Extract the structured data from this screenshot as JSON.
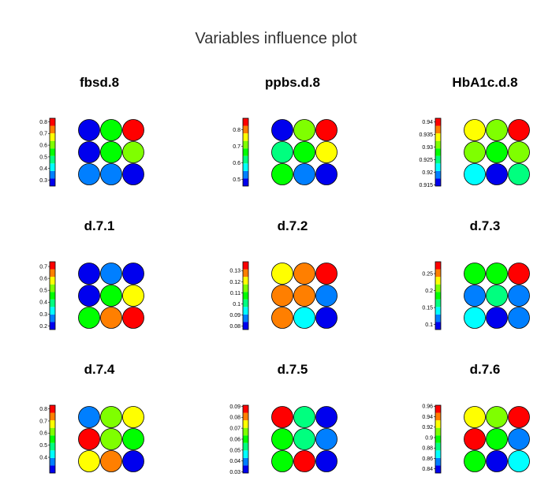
{
  "title": "Variables influence plot",
  "colors": {
    "palette": [
      "#0000ee",
      "#007fff",
      "#00ffff",
      "#00ff7f",
      "#00ff00",
      "#7fff00",
      "#ffff00",
      "#ff7f00",
      "#ff0000"
    ],
    "border": "#000000"
  },
  "chart_data": [
    {
      "type": "heatmap",
      "title": "fbsd.8",
      "scale": {
        "min": 0.25,
        "max": 0.83,
        "ticks": [
          "0.8",
          "0.7",
          "0.6",
          "0.5",
          "0.4",
          "0.3"
        ],
        "tick_values": [
          0.8,
          0.7,
          0.6,
          0.5,
          0.4,
          0.3
        ]
      },
      "values": [
        [
          0.26,
          0.52,
          0.82
        ],
        [
          0.26,
          0.52,
          0.62
        ],
        [
          0.34,
          0.34,
          0.26
        ]
      ]
    },
    {
      "type": "heatmap",
      "title": "ppbs.d.8",
      "scale": {
        "min": 0.46,
        "max": 0.87,
        "ticks": [
          "0.8",
          "0.7",
          "0.6",
          "0.5"
        ],
        "tick_values": [
          0.8,
          0.7,
          0.6,
          0.5
        ]
      },
      "values": [
        [
          0.47,
          0.7,
          0.86
        ],
        [
          0.6,
          0.65,
          0.74
        ],
        [
          0.65,
          0.53,
          0.47
        ]
      ]
    },
    {
      "type": "heatmap",
      "title": "HbA1c.d.8",
      "scale": {
        "min": 0.9145,
        "max": 0.9415,
        "ticks": [
          "0.94",
          "0.935",
          "0.93",
          "0.925",
          "0.92",
          "0.915"
        ],
        "tick_values": [
          0.94,
          0.935,
          0.93,
          0.925,
          0.92,
          0.915
        ]
      },
      "values": [
        [
          0.933,
          0.931,
          0.941
        ],
        [
          0.931,
          0.929,
          0.931
        ],
        [
          0.923,
          0.915,
          0.926
        ]
      ]
    },
    {
      "type": "heatmap",
      "title": "d.7.1",
      "scale": {
        "min": 0.17,
        "max": 0.74,
        "ticks": [
          "0.7",
          "0.6",
          "0.5",
          "0.4",
          "0.3",
          "0.2"
        ],
        "tick_values": [
          0.7,
          0.6,
          0.5,
          0.4,
          0.3,
          0.2
        ]
      },
      "values": [
        [
          0.18,
          0.25,
          0.18
        ],
        [
          0.18,
          0.43,
          0.6
        ],
        [
          0.43,
          0.67,
          0.73
        ]
      ]
    },
    {
      "type": "heatmap",
      "title": "d.7.2",
      "scale": {
        "min": 0.077,
        "max": 0.138,
        "ticks": [
          "0.13",
          "0.12",
          "0.11",
          "0.1",
          "0.09",
          "0.08"
        ],
        "tick_values": [
          0.13,
          0.12,
          0.11,
          0.1,
          0.09,
          0.08
        ]
      },
      "values": [
        [
          0.118,
          0.125,
          0.137
        ],
        [
          0.13,
          0.125,
          0.09
        ],
        [
          0.125,
          0.097,
          0.078
        ]
      ]
    },
    {
      "type": "heatmap",
      "title": "d.7.3",
      "scale": {
        "min": 0.085,
        "max": 0.285,
        "ticks": [
          "0.25",
          "0.2",
          "0.15",
          "0.1"
        ],
        "tick_values": [
          0.25,
          0.2,
          0.15,
          0.1
        ]
      },
      "values": [
        [
          0.195,
          0.195,
          0.283
        ],
        [
          0.11,
          0.17,
          0.11
        ],
        [
          0.15,
          0.09,
          0.11
        ]
      ]
    },
    {
      "type": "heatmap",
      "title": "d.7.4",
      "scale": {
        "min": 0.27,
        "max": 0.83,
        "ticks": [
          "0.8",
          "0.7",
          "0.6",
          "0.5",
          "0.4"
        ],
        "tick_values": [
          0.8,
          0.7,
          0.6,
          0.5,
          0.4
        ]
      },
      "values": [
        [
          0.34,
          0.61,
          0.68
        ],
        [
          0.82,
          0.61,
          0.54
        ],
        [
          0.68,
          0.75,
          0.28
        ]
      ]
    },
    {
      "type": "heatmap",
      "title": "d.7.5",
      "scale": {
        "min": 0.029,
        "max": 0.091,
        "ticks": [
          "0.09",
          "0.08",
          "0.07",
          "0.06",
          "0.05",
          "0.04",
          "0.03"
        ],
        "tick_values": [
          0.09,
          0.08,
          0.07,
          0.06,
          0.05,
          0.04,
          0.03
        ]
      },
      "values": [
        [
          0.09,
          0.052,
          0.03
        ],
        [
          0.059,
          0.052,
          0.037
        ],
        [
          0.059,
          0.09,
          0.03
        ]
      ]
    },
    {
      "type": "heatmap",
      "title": "d.7.6",
      "scale": {
        "min": 0.832,
        "max": 0.962,
        "ticks": [
          "0.96",
          "0.94",
          "0.92",
          "0.9",
          "0.88",
          "0.86",
          "0.84"
        ],
        "tick_values": [
          0.96,
          0.94,
          0.92,
          0.9,
          0.88,
          0.86,
          0.84
        ]
      },
      "values": [
        [
          0.933,
          0.918,
          0.96
        ],
        [
          0.96,
          0.904,
          0.86
        ],
        [
          0.904,
          0.833,
          0.875
        ]
      ]
    }
  ]
}
